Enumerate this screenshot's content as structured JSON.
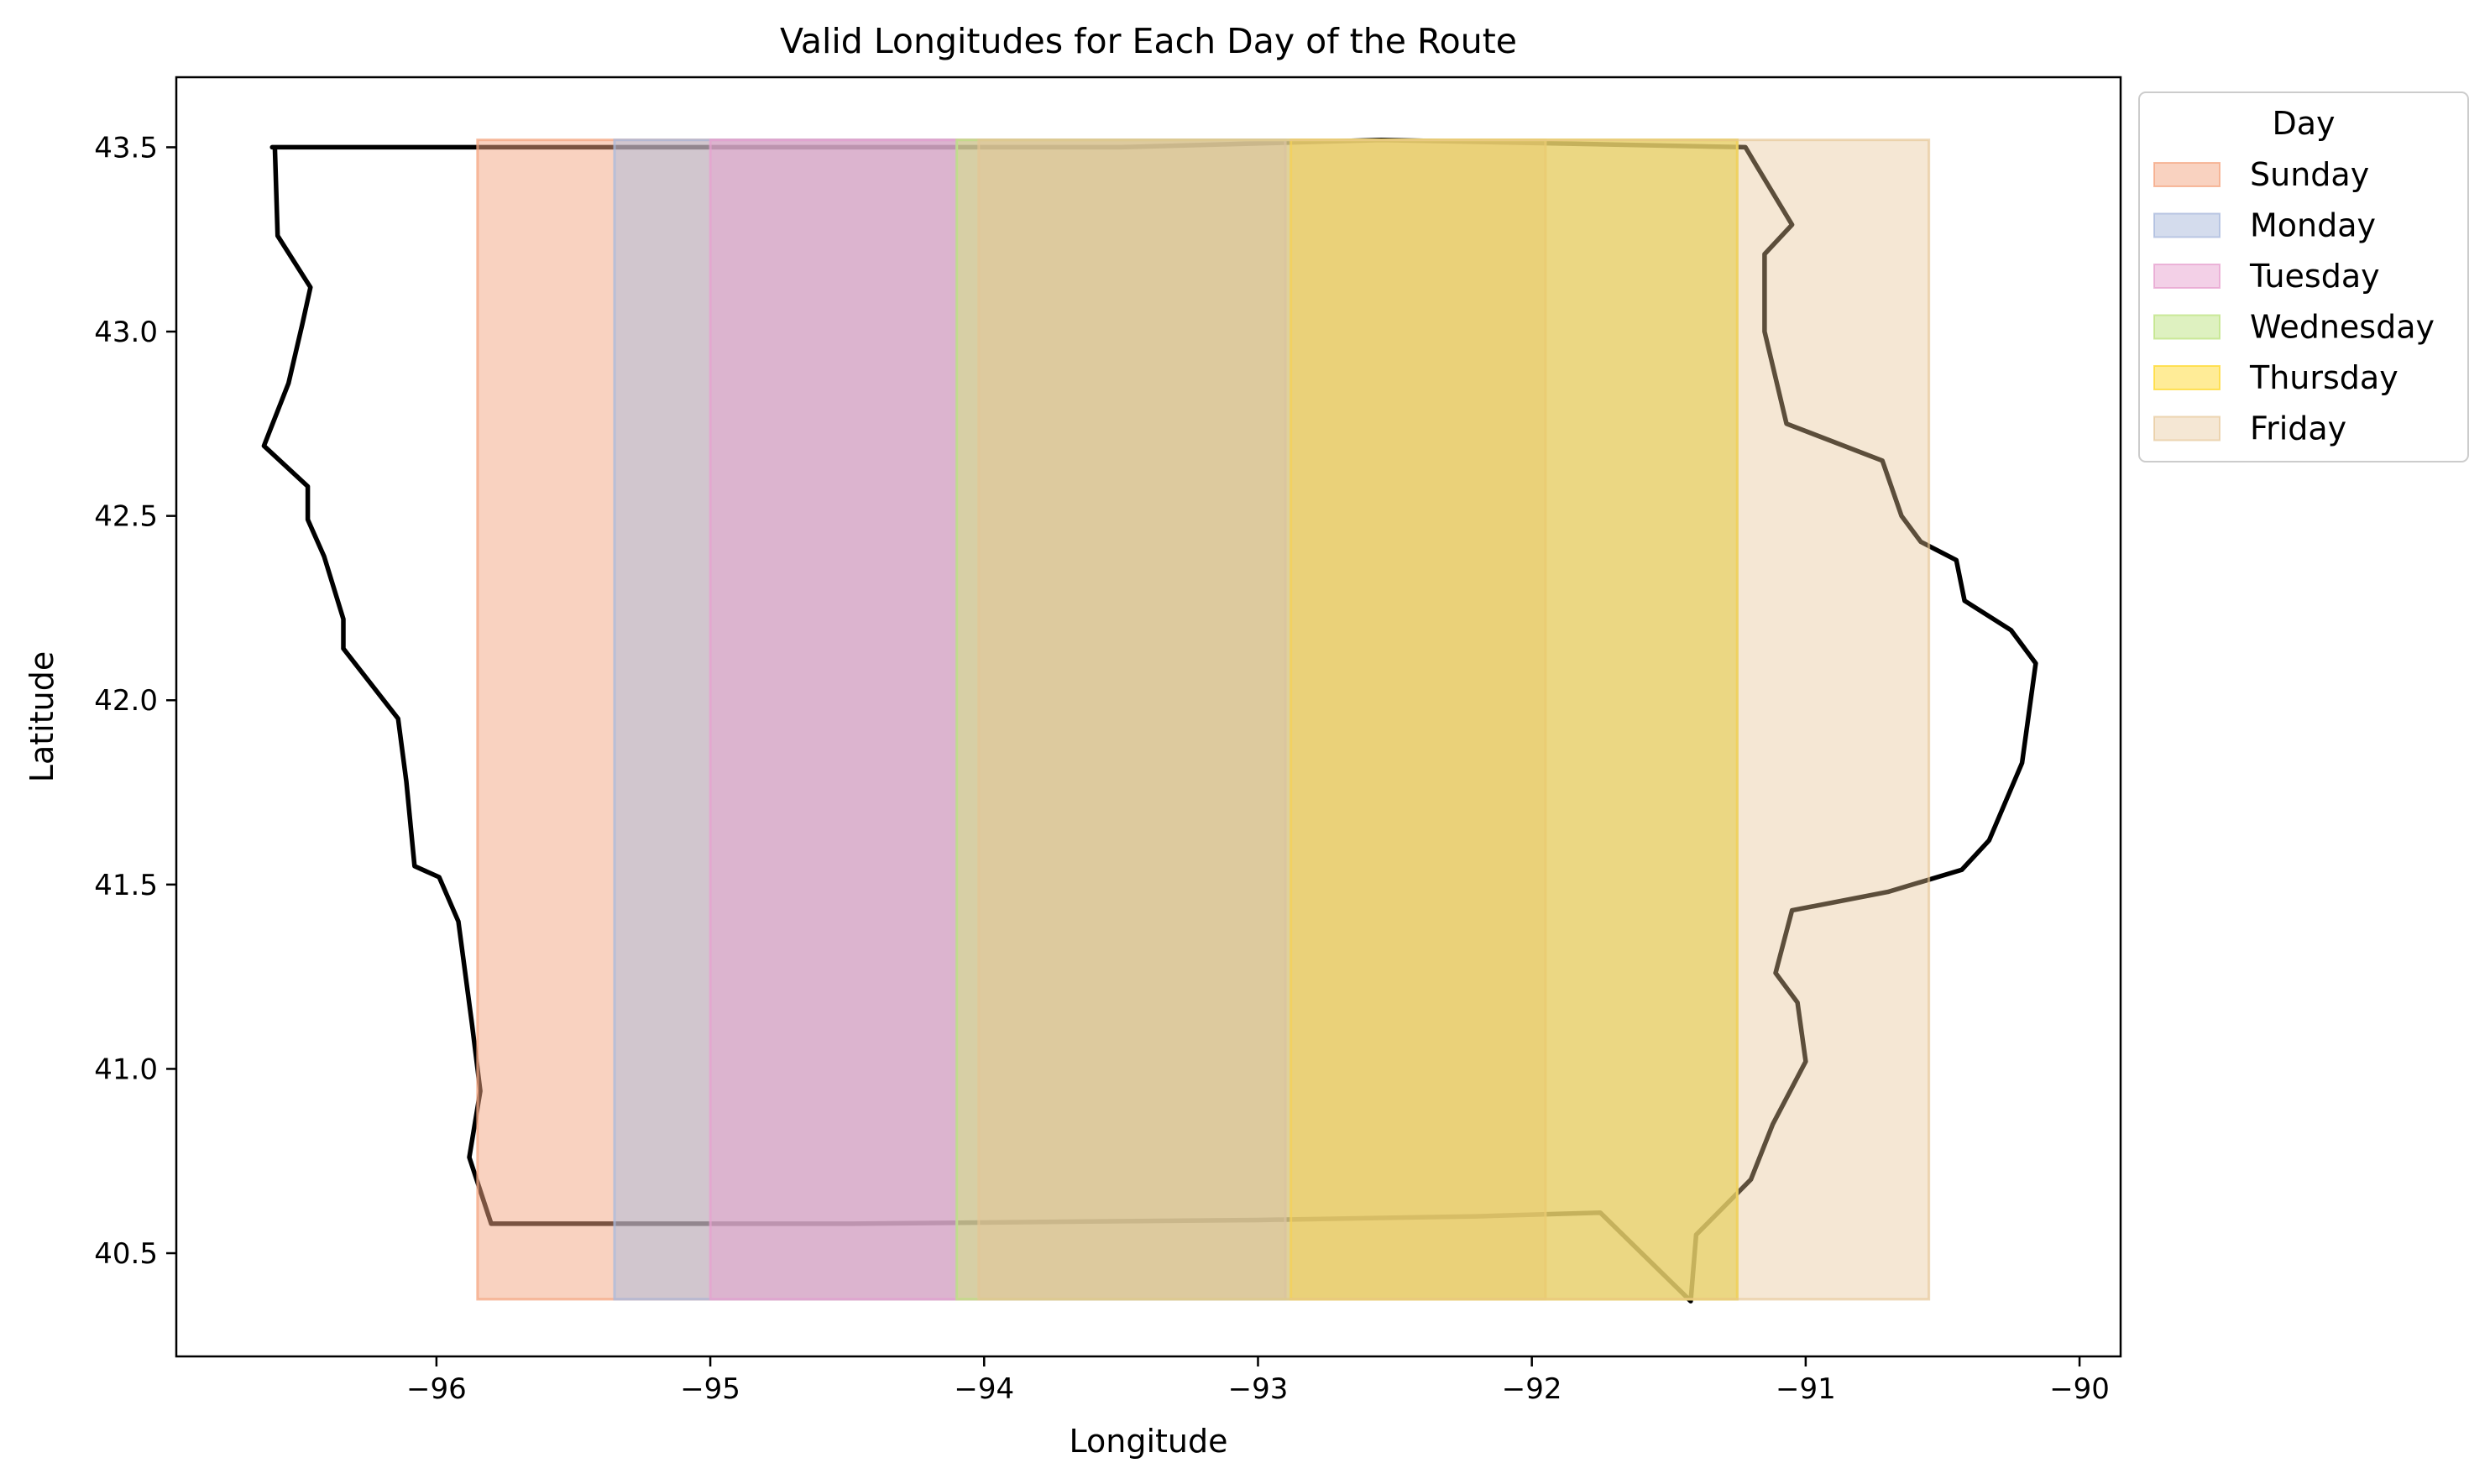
{
  "chart_data": {
    "type": "area",
    "title": "Valid Longitudes for Each Day of the Route",
    "xlabel": "Longitude",
    "ylabel": "Latitude",
    "xlim": [
      -96.95,
      -89.85
    ],
    "ylim": [
      40.22,
      43.69
    ],
    "xticks": [
      -96,
      -95,
      -94,
      -93,
      -92,
      -91,
      -90
    ],
    "xtick_labels": [
      "−96",
      "−95",
      "−94",
      "−93",
      "−92",
      "−91",
      "−90"
    ],
    "yticks": [
      40.5,
      41.0,
      41.5,
      42.0,
      42.5,
      43.0,
      43.5
    ],
    "ytick_labels": [
      "40.5",
      "41.0",
      "41.5",
      "42.0",
      "42.5",
      "43.0",
      "43.5"
    ],
    "grid": false,
    "legend": {
      "title": "Day",
      "position": "outside-upper-right"
    },
    "band_lat_range": [
      40.375,
      43.52
    ],
    "series": [
      {
        "name": "Sunday",
        "lon_range": [
          -95.85,
          -91.95
        ],
        "color": "#f4a582",
        "opacity": 0.5
      },
      {
        "name": "Monday",
        "lon_range": [
          -95.35,
          -94.1
        ],
        "color": "#a9b9dc",
        "opacity": 0.5
      },
      {
        "name": "Tuesday",
        "lon_range": [
          -95.0,
          -92.9
        ],
        "color": "#e7a1cf",
        "opacity": 0.5
      },
      {
        "name": "Wednesday",
        "lon_range": [
          -94.1,
          -91.25
        ],
        "color": "#bde381",
        "opacity": 0.5
      },
      {
        "name": "Thursday",
        "lon_range": [
          -92.88,
          -91.25
        ],
        "color": "#ffd92f",
        "opacity": 0.5
      },
      {
        "name": "Friday",
        "lon_range": [
          -94.02,
          -90.55
        ],
        "color": "#e5c494",
        "opacity": 0.4
      }
    ],
    "outline": {
      "color": "#000000",
      "points": [
        [
          -96.6,
          43.5
        ],
        [
          -93.5,
          43.5
        ],
        [
          -92.55,
          43.52
        ],
        [
          -91.22,
          43.5
        ],
        [
          -91.18,
          43.45
        ],
        [
          -91.05,
          43.29
        ],
        [
          -91.15,
          43.21
        ],
        [
          -91.15,
          43.0
        ],
        [
          -91.07,
          42.75
        ],
        [
          -90.72,
          42.65
        ],
        [
          -90.65,
          42.5
        ],
        [
          -90.58,
          42.43
        ],
        [
          -90.45,
          42.38
        ],
        [
          -90.42,
          42.27
        ],
        [
          -90.25,
          42.19
        ],
        [
          -90.16,
          42.1
        ],
        [
          -90.21,
          41.83
        ],
        [
          -90.33,
          41.62
        ],
        [
          -90.43,
          41.54
        ],
        [
          -90.7,
          41.48
        ],
        [
          -91.05,
          41.43
        ],
        [
          -91.11,
          41.26
        ],
        [
          -91.03,
          41.18
        ],
        [
          -91.0,
          41.02
        ],
        [
          -91.12,
          40.85
        ],
        [
          -91.2,
          40.7
        ],
        [
          -91.4,
          40.55
        ],
        [
          -91.42,
          40.37
        ],
        [
          -91.53,
          40.45
        ],
        [
          -91.75,
          40.61
        ],
        [
          -92.2,
          40.6
        ],
        [
          -93.0,
          40.59
        ],
        [
          -94.5,
          40.58
        ],
        [
          -95.8,
          40.58
        ],
        [
          -95.88,
          40.76
        ],
        [
          -95.84,
          40.94
        ],
        [
          -95.87,
          41.12
        ],
        [
          -95.92,
          41.4
        ],
        [
          -95.99,
          41.52
        ],
        [
          -96.08,
          41.55
        ],
        [
          -96.11,
          41.78
        ],
        [
          -96.14,
          41.95
        ],
        [
          -96.34,
          42.14
        ],
        [
          -96.34,
          42.22
        ],
        [
          -96.41,
          42.39
        ],
        [
          -96.47,
          42.49
        ],
        [
          -96.47,
          42.58
        ],
        [
          -96.63,
          42.69
        ],
        [
          -96.54,
          42.86
        ],
        [
          -96.49,
          43.02
        ],
        [
          -96.46,
          43.12
        ],
        [
          -96.58,
          43.26
        ],
        [
          -96.59,
          43.5
        ]
      ]
    }
  }
}
